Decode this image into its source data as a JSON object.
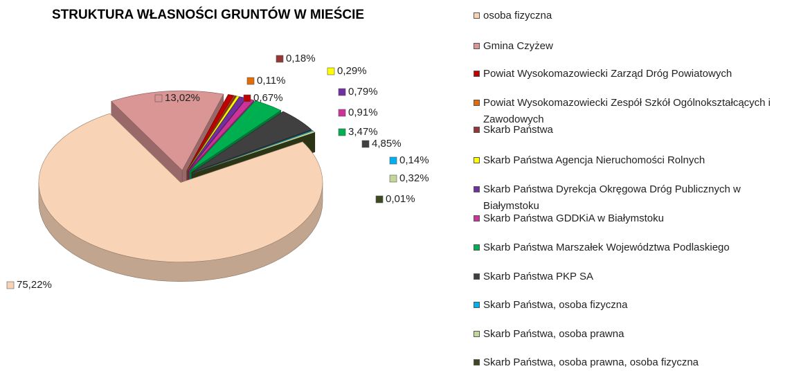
{
  "chart_data": {
    "type": "pie3d",
    "title": "STRUKTURA WŁASNOŚCI GRUNTÓW W MIEŚCIE",
    "categories": [
      "osoba fizyczna",
      "Gmina Czyżew",
      "Powiat Wysokomazowiecki Zarząd Dróg Powiatowych",
      "Powiat Wysokomazowiecki Zespół Szkół Ogólnokształcących i Zawodowych",
      "Skarb Państwa",
      "Skarb Państwa Agencja Nieruchomości Rolnych",
      "Skarb Państwa Dyrekcja Okręgowa Dróg Publicznych w Białymstoku",
      "Skarb Państwa GDDKiA w Białymstoku",
      "Skarb Państwa Marszałek Województwa Podlaskiego",
      "Skarb Państwa PKP SA",
      "Skarb Państwa, osoba fizyczna",
      "Skarb Państwa, osoba prawna",
      "Skarb Państwa, osoba prawna, osoba fizyczna"
    ],
    "values": [
      75.22,
      13.02,
      0.67,
      0.11,
      0.18,
      0.29,
      0.79,
      0.91,
      3.47,
      4.85,
      0.14,
      0.32,
      0.01
    ],
    "value_labels": [
      "75,22%",
      "13,02%",
      "0,67%",
      "0,11%",
      "0,18%",
      "0,29%",
      "0,79%",
      "0,91%",
      "3,47%",
      "4,85%",
      "0,14%",
      "0,32%",
      "0,01%"
    ],
    "colors": [
      "#f9d3b6",
      "#d99694",
      "#c00000",
      "#e36c09",
      "#953735",
      "#ffff00",
      "#7030a0",
      "#cc3399",
      "#00b050",
      "#404040",
      "#00b0f0",
      "#c4d79b",
      "#3d4a1e"
    ],
    "legend": "right"
  }
}
